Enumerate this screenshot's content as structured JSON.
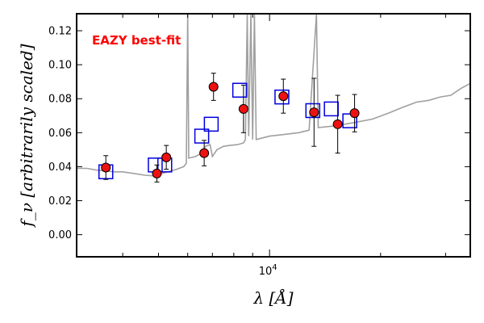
{
  "chart_data": {
    "type": "scatter",
    "title": "",
    "annotation": {
      "text": "EAZY best-fit",
      "color": "#ff0000"
    },
    "xlabel": "λ [Å]",
    "ylabel": "f_ν [arbitrarily scaled]",
    "x_scale": "log",
    "x_range": [
      3000,
      35000
    ],
    "ylim": [
      -0.013,
      0.13
    ],
    "x_tick_labels": [
      {
        "value": 10000,
        "base": "10",
        "exponent": "4"
      }
    ],
    "y_tick_labels": [
      "0.00",
      "0.02",
      "0.04",
      "0.06",
      "0.08",
      "0.10",
      "0.12"
    ],
    "y_ticks": [
      0.0,
      0.02,
      0.04,
      0.06,
      0.08,
      0.1,
      0.12
    ],
    "grid": false,
    "legend": "none",
    "series": [
      {
        "kind": "line",
        "color": "#a0a0a0",
        "points": [
          [
            3000,
            0.039
          ],
          [
            3200,
            0.039
          ],
          [
            3400,
            0.038
          ],
          [
            3600,
            0.0375
          ],
          [
            3800,
            0.037
          ],
          [
            4000,
            0.037
          ],
          [
            4300,
            0.036
          ],
          [
            4600,
            0.035
          ],
          [
            4900,
            0.0345
          ],
          [
            5100,
            0.036
          ],
          [
            5300,
            0.037
          ],
          [
            5600,
            0.0385
          ],
          [
            5850,
            0.04
          ],
          [
            5950,
            0.042
          ],
          [
            6000,
            0.13
          ],
          [
            6040,
            0.045
          ],
          [
            6300,
            0.046
          ],
          [
            6550,
            0.048
          ],
          [
            6700,
            0.052
          ],
          [
            6900,
            0.053
          ],
          [
            7000,
            0.046
          ],
          [
            7200,
            0.05
          ],
          [
            7500,
            0.052
          ],
          [
            7800,
            0.0525
          ],
          [
            8200,
            0.053
          ],
          [
            8500,
            0.054
          ],
          [
            8600,
            0.056
          ],
          [
            8700,
            0.13
          ],
          [
            8780,
            0.058
          ],
          [
            8900,
            0.13
          ],
          [
            9000,
            0.056
          ],
          [
            9100,
            0.13
          ],
          [
            9200,
            0.056
          ],
          [
            9600,
            0.057
          ],
          [
            10000,
            0.058
          ],
          [
            11000,
            0.059
          ],
          [
            12000,
            0.06
          ],
          [
            12800,
            0.0615
          ],
          [
            13400,
            0.13
          ],
          [
            13550,
            0.063
          ],
          [
            15000,
            0.064
          ],
          [
            17000,
            0.066
          ],
          [
            19000,
            0.068
          ],
          [
            21000,
            0.0715
          ],
          [
            23000,
            0.075
          ],
          [
            25000,
            0.078
          ],
          [
            27000,
            0.079
          ],
          [
            29000,
            0.081
          ],
          [
            31000,
            0.082
          ],
          [
            33000,
            0.086
          ],
          [
            35000,
            0.089
          ]
        ]
      },
      {
        "kind": "squares",
        "color": "#0000dd",
        "points": [
          [
            3600,
            0.037
          ],
          [
            4900,
            0.041
          ],
          [
            5200,
            0.041
          ],
          [
            6550,
            0.058
          ],
          [
            6950,
            0.065
          ],
          [
            8300,
            0.085
          ],
          [
            10800,
            0.081
          ],
          [
            13100,
            0.073
          ],
          [
            14700,
            0.074
          ],
          [
            16500,
            0.067
          ]
        ]
      },
      {
        "kind": "points_with_errors",
        "color": "#ee1111",
        "points": [
          {
            "x": 3600,
            "y": 0.0395,
            "err": 0.007
          },
          {
            "x": 4950,
            "y": 0.036,
            "err": 0.005
          },
          {
            "x": 5250,
            "y": 0.0455,
            "err": 0.007
          },
          {
            "x": 6650,
            "y": 0.048,
            "err": 0.0075
          },
          {
            "x": 7050,
            "y": 0.087,
            "err": 0.008
          },
          {
            "x": 8500,
            "y": 0.074,
            "err": 0.014
          },
          {
            "x": 10900,
            "y": 0.0815,
            "err": 0.01
          },
          {
            "x": 13200,
            "y": 0.072,
            "err": 0.02
          },
          {
            "x": 15300,
            "y": 0.065,
            "err": 0.017
          },
          {
            "x": 17000,
            "y": 0.0715,
            "err": 0.011
          }
        ]
      }
    ]
  }
}
